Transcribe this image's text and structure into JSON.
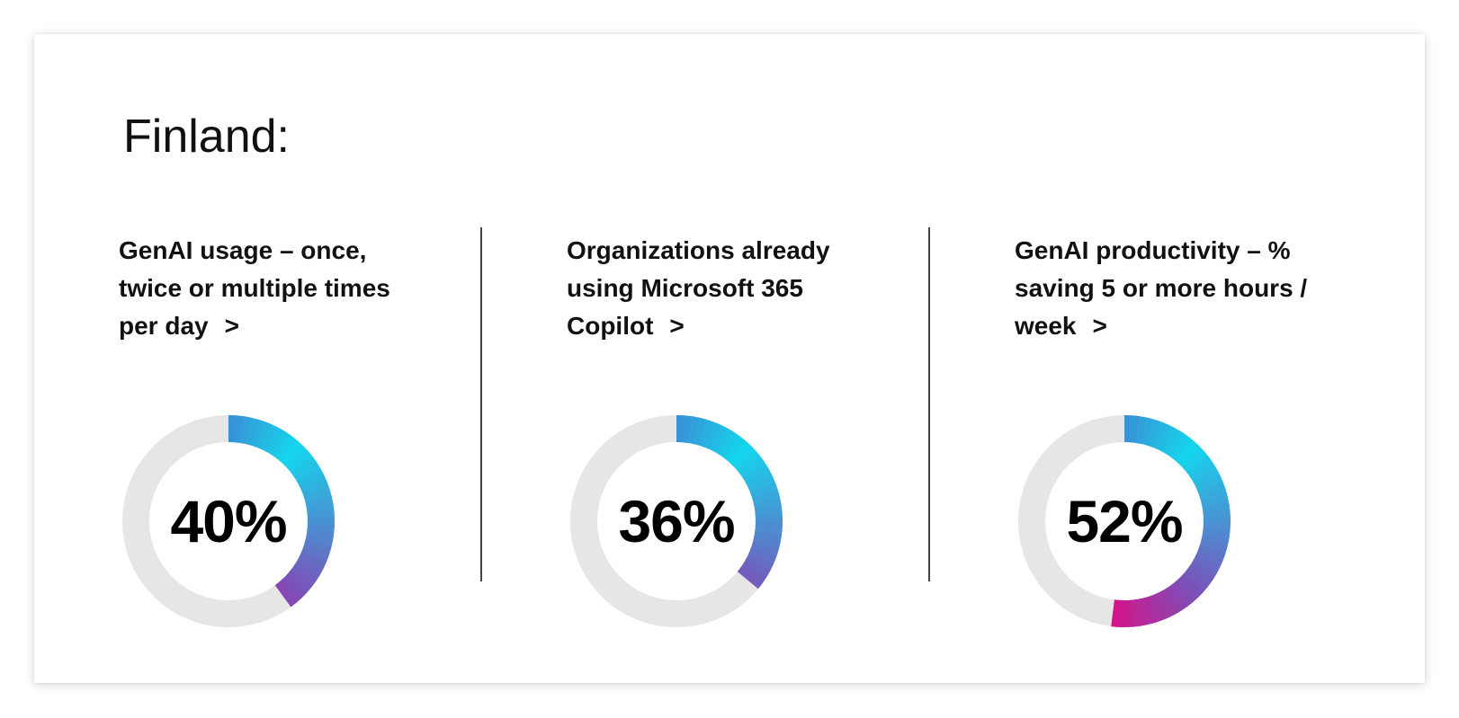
{
  "title": "Finland:",
  "arrow_glyph": ">",
  "colors": {
    "track": "#e6e6e6",
    "gradient_start": "#3a8fd6",
    "gradient_cyan": "#14d6ec",
    "gradient_purple": "#7d4fb8",
    "gradient_magenta": "#d41489"
  },
  "chart_data": [
    {
      "type": "pie",
      "variant": "donut",
      "label": "GenAI usage – once, twice or multiple times per day",
      "value_text": "40%",
      "values": [
        40,
        60
      ],
      "categories": [
        "",
        ""
      ]
    },
    {
      "type": "pie",
      "variant": "donut",
      "label": "Organizations already using Microsoft 365 Copilot",
      "value_text": "36%",
      "values": [
        36,
        64
      ],
      "categories": [
        "",
        ""
      ]
    },
    {
      "type": "pie",
      "variant": "donut",
      "label": "GenAI productivity – % saving 5 or more hours / week",
      "value_text": "52%",
      "values": [
        52,
        48
      ],
      "categories": [
        "",
        ""
      ]
    }
  ]
}
